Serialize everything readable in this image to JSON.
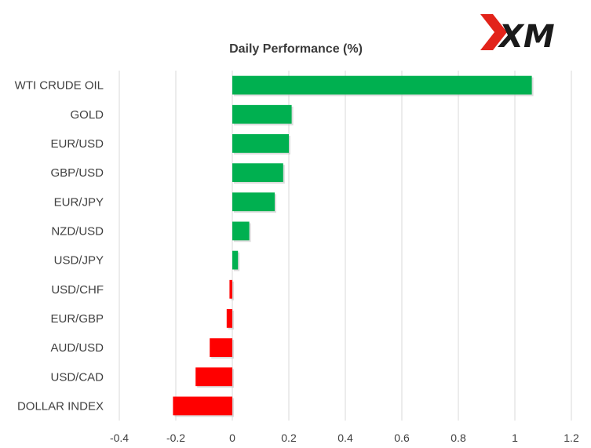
{
  "logo": {
    "text": "XM",
    "accent": "#e2231a",
    "color": "#1a1a1a"
  },
  "chart_data": {
    "type": "bar",
    "orientation": "horizontal",
    "title": "Daily Performance  (%)",
    "categories": [
      "WTI CRUDE OIL",
      "GOLD",
      "EUR/USD",
      "GBP/USD",
      "EUR/JPY",
      "NZD/USD",
      "USD/JPY",
      "USD/CHF",
      "EUR/GBP",
      "AUD/USD",
      "USD/CAD",
      "DOLLAR INDEX"
    ],
    "values": [
      1.06,
      0.21,
      0.2,
      0.18,
      0.15,
      0.06,
      0.02,
      -0.01,
      -0.02,
      -0.08,
      -0.13,
      -0.21
    ],
    "xlim": [
      -0.4,
      1.2
    ],
    "xticks": [
      "-0.4",
      "-0.2",
      "0",
      "0.2",
      "0.4",
      "0.6",
      "0.8",
      "1",
      "1.2"
    ],
    "grid": true,
    "positive_color": "#00b050",
    "negative_color": "#ff0000"
  }
}
